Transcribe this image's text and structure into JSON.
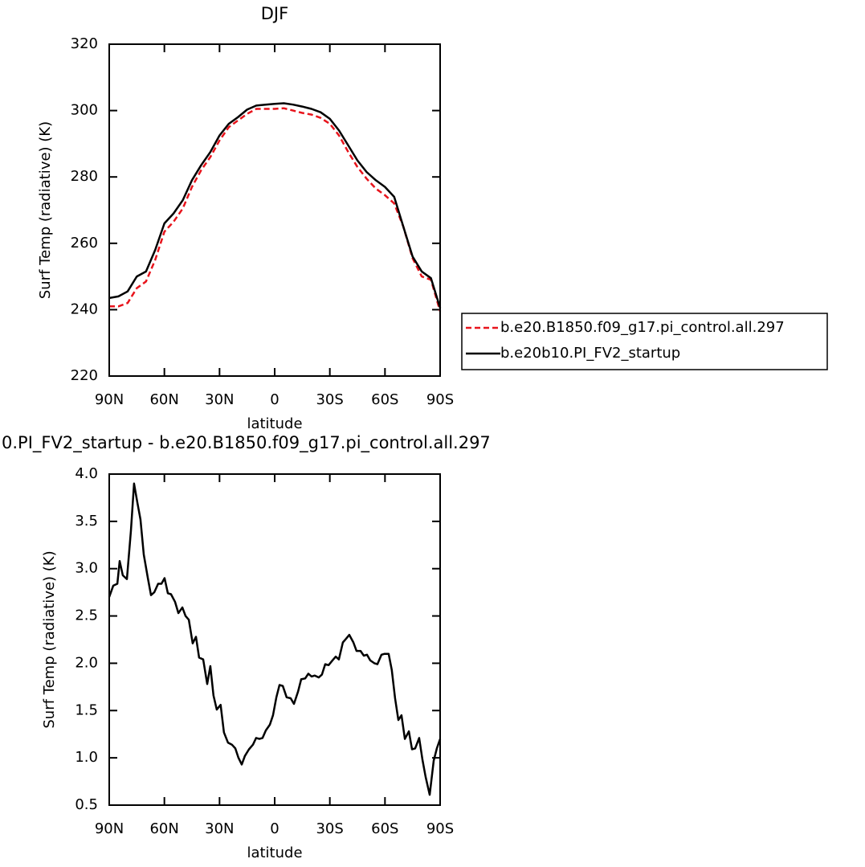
{
  "chart_data": [
    {
      "type": "line",
      "title": "DJF",
      "xlabel": "latitude",
      "ylabel": "Surf Temp (radiative) (K)",
      "xlim": [
        90,
        -90
      ],
      "xticks": [
        {
          "value": 90,
          "label": "90N"
        },
        {
          "value": 60,
          "label": "60N"
        },
        {
          "value": 30,
          "label": "30N"
        },
        0,
        {
          "value": -30,
          "label": "30S"
        },
        {
          "value": -60,
          "label": "60S"
        },
        {
          "value": -90,
          "label": "90S"
        }
      ],
      "ylim": [
        220,
        320
      ],
      "yticks": [
        220,
        240,
        260,
        280,
        300,
        320
      ],
      "legend": "right",
      "x": [
        90,
        85,
        80,
        75,
        70,
        65,
        60,
        55,
        50,
        45,
        40,
        35,
        30,
        25,
        20,
        15,
        10,
        5,
        0,
        -5,
        -10,
        -15,
        -20,
        -25,
        -30,
        -35,
        -40,
        -45,
        -50,
        -55,
        -60,
        -65,
        -70,
        -75,
        -80,
        -85,
        -90
      ],
      "series": [
        {
          "name": "b.e20.B1850.f09_g17.pi_control.all.297",
          "color": "#e8141c",
          "line_style": "dashed",
          "values": [
            241,
            241,
            242,
            246.5,
            248.5,
            255,
            263.5,
            266.5,
            270.5,
            277,
            282,
            286,
            291,
            295,
            297,
            299,
            300.5,
            300.5,
            300.5,
            300.7,
            300,
            299.3,
            298.8,
            297.8,
            296,
            292.5,
            287.5,
            283,
            279.5,
            276.5,
            274.5,
            272,
            265,
            255.5,
            250,
            249,
            239.5
          ]
        },
        {
          "name": "b.e20b10.PI_FV2_startup",
          "color": "#000000",
          "line_style": "solid",
          "values": [
            243.5,
            244,
            245.5,
            250,
            251.5,
            258,
            266,
            269,
            273,
            279,
            283.5,
            287.5,
            292.5,
            296,
            298,
            300.3,
            301.5,
            301.8,
            302,
            302.2,
            301.8,
            301.2,
            300.5,
            299.5,
            297.5,
            294,
            289.5,
            285,
            281.5,
            279,
            277,
            274,
            265,
            256,
            251.5,
            249.5,
            240.5
          ]
        }
      ]
    },
    {
      "type": "line",
      "title": "0.PI_FV2_startup - b.e20.B1850.f09_g17.pi_control.all.297",
      "xlabel": "latitude",
      "ylabel": "Surf Temp (radiative) (K)",
      "xlim": [
        90,
        -90
      ],
      "xticks": [
        {
          "value": 90,
          "label": "90N"
        },
        {
          "value": 60,
          "label": "60N"
        },
        {
          "value": 30,
          "label": "30N"
        },
        0,
        {
          "value": -30,
          "label": "30S"
        },
        {
          "value": -60,
          "label": "60S"
        },
        {
          "value": -90,
          "label": "90S"
        }
      ],
      "ylim": [
        0.5,
        4.0
      ],
      "yticks": [
        0.5,
        {
          "value": 1,
          "label": "1.0"
        },
        1.5,
        {
          "value": 2,
          "label": "2.0"
        },
        2.5,
        {
          "value": 3,
          "label": "3.0"
        },
        3.5,
        {
          "value": 4,
          "label": "4.0"
        }
      ],
      "x": [
        90,
        87.8,
        85.6,
        84.3,
        82.6,
        80.4,
        78.2,
        76.5,
        74.7,
        73,
        71.2,
        69,
        67.3,
        65.5,
        63.4,
        61.6,
        59.9,
        58.1,
        56.4,
        54.2,
        52.4,
        50.2,
        48.5,
        46.7,
        44.6,
        42.8,
        41.1,
        38.9,
        36.7,
        35,
        33.3,
        31.5,
        29.4,
        27.6,
        25.4,
        23.3,
        21.4,
        19.7,
        17.9,
        16.2,
        14,
        11.8,
        10.1,
        8.3,
        6.6,
        4.8,
        2.6,
        0.9,
        -0.9,
        -2.6,
        -4.4,
        -6.5,
        -8.7,
        -10.5,
        -12.7,
        -14.4,
        -16.6,
        -18.3,
        -20.1,
        -21.8,
        -24,
        -25.7,
        -27.5,
        -29.3,
        -31.4,
        -33.2,
        -34.9,
        -37.1,
        -38.9,
        -40.6,
        -42.8,
        -44.5,
        -46.7,
        -48.5,
        -50.2,
        -52,
        -54.2,
        -55.9,
        -58.1,
        -59.8,
        -62,
        -63.7,
        -65.5,
        -67.3,
        -69,
        -70.8,
        -73,
        -74.7,
        -76.4,
        -78.6,
        -80.4,
        -82.1,
        -84.3,
        -86.5,
        -88.2,
        -90
      ],
      "series": [
        {
          "color": "#000000",
          "line_style": "solid",
          "values": [
            2.7,
            2.82,
            2.84,
            3.08,
            2.93,
            2.89,
            3.4,
            3.9,
            3.7,
            3.52,
            3.15,
            2.9,
            2.72,
            2.75,
            2.84,
            2.84,
            2.9,
            2.74,
            2.73,
            2.65,
            2.53,
            2.59,
            2.5,
            2.46,
            2.21,
            2.28,
            2.06,
            2.04,
            1.78,
            1.97,
            1.66,
            1.51,
            1.56,
            1.27,
            1.16,
            1.14,
            1.1,
            1.0,
            0.93,
            1.02,
            1.09,
            1.14,
            1.21,
            1.2,
            1.21,
            1.29,
            1.35,
            1.45,
            1.64,
            1.77,
            1.76,
            1.64,
            1.63,
            1.57,
            1.7,
            1.83,
            1.84,
            1.89,
            1.86,
            1.87,
            1.85,
            1.88,
            1.99,
            1.98,
            2.03,
            2.07,
            2.04,
            2.22,
            2.26,
            2.3,
            2.22,
            2.13,
            2.13,
            2.08,
            2.09,
            2.03,
            2.0,
            1.99,
            2.09,
            2.1,
            2.1,
            1.93,
            1.63,
            1.4,
            1.45,
            1.2,
            1.28,
            1.09,
            1.1,
            1.21,
            0.98,
            0.8,
            0.61,
            0.97,
            1.1,
            1.2
          ]
        }
      ]
    }
  ]
}
